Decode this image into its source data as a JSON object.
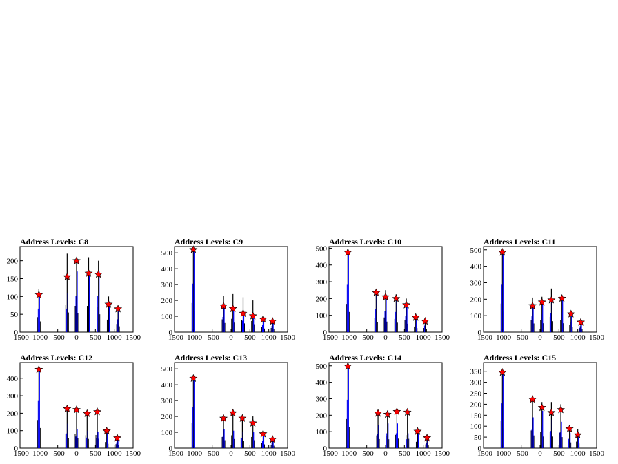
{
  "chart_data": [
    {
      "type": "bar",
      "title": "Address Levels: C8",
      "xlim": [
        -1500,
        1500
      ],
      "ylim": [
        0,
        240
      ],
      "yticks": [
        0,
        50,
        100,
        150,
        200
      ],
      "xticks": [
        -1500,
        -1000,
        -500,
        0,
        500,
        1000,
        1500
      ],
      "black_peaks": [
        [
          -1000,
          120
        ],
        [
          -250,
          220
        ],
        [
          0,
          210
        ],
        [
          320,
          210
        ],
        [
          580,
          200
        ],
        [
          850,
          100
        ],
        [
          1100,
          65
        ]
      ],
      "blue_peaks": [
        [
          -1000,
          110
        ],
        [
          -250,
          110
        ],
        [
          0,
          170
        ],
        [
          320,
          170
        ],
        [
          580,
          170
        ],
        [
          850,
          80
        ],
        [
          1100,
          60
        ]
      ],
      "markers": [
        [
          -1000,
          105
        ],
        [
          -250,
          155
        ],
        [
          0,
          200
        ],
        [
          320,
          165
        ],
        [
          580,
          162
        ],
        [
          850,
          78
        ],
        [
          1100,
          65
        ]
      ]
    },
    {
      "type": "bar",
      "title": "Address Levels: C9",
      "xlim": [
        -1500,
        1500
      ],
      "ylim": [
        0,
        540
      ],
      "yticks": [
        0,
        100,
        200,
        300,
        400,
        500
      ],
      "xticks": [
        -1500,
        -1000,
        -500,
        0,
        500,
        1000,
        1500
      ],
      "black_peaks": [
        [
          -1000,
          525
        ],
        [
          -200,
          230
        ],
        [
          50,
          240
        ],
        [
          320,
          220
        ],
        [
          580,
          200
        ],
        [
          850,
          90
        ],
        [
          1100,
          75
        ]
      ],
      "blue_peaks": [
        [
          -1000,
          510
        ],
        [
          -200,
          160
        ],
        [
          50,
          150
        ],
        [
          320,
          120
        ],
        [
          580,
          105
        ],
        [
          850,
          80
        ],
        [
          1100,
          65
        ]
      ],
      "markers": [
        [
          -1000,
          520
        ],
        [
          -200,
          165
        ],
        [
          50,
          148
        ],
        [
          320,
          118
        ],
        [
          580,
          102
        ],
        [
          850,
          82
        ],
        [
          1100,
          68
        ]
      ]
    },
    {
      "type": "bar",
      "title": "Address Levels: C10",
      "xlim": [
        -1500,
        1500
      ],
      "ylim": [
        0,
        510
      ],
      "yticks": [
        0,
        100,
        200,
        300,
        400,
        500
      ],
      "xticks": [
        -1500,
        -1000,
        -500,
        0,
        500,
        1000,
        1500
      ],
      "black_peaks": [
        [
          -1000,
          480
        ],
        [
          -250,
          240
        ],
        [
          0,
          250
        ],
        [
          280,
          225
        ],
        [
          550,
          200
        ],
        [
          800,
          95
        ],
        [
          1050,
          70
        ]
      ],
      "blue_peaks": [
        [
          -1000,
          470
        ],
        [
          -250,
          230
        ],
        [
          0,
          210
        ],
        [
          280,
          200
        ],
        [
          550,
          160
        ],
        [
          800,
          85
        ],
        [
          1050,
          65
        ]
      ],
      "markers": [
        [
          -1000,
          475
        ],
        [
          -250,
          235
        ],
        [
          0,
          210
        ],
        [
          280,
          200
        ],
        [
          550,
          162
        ],
        [
          800,
          88
        ],
        [
          1050,
          65
        ]
      ]
    },
    {
      "type": "bar",
      "title": "Address Levels: C11",
      "xlim": [
        -1500,
        1500
      ],
      "ylim": [
        0,
        520
      ],
      "yticks": [
        0,
        100,
        200,
        300,
        400,
        500
      ],
      "xticks": [
        -1500,
        -1000,
        -500,
        0,
        500,
        1000,
        1500
      ],
      "black_peaks": [
        [
          -1000,
          495
        ],
        [
          -200,
          210
        ],
        [
          50,
          215
        ],
        [
          300,
          265
        ],
        [
          580,
          215
        ],
        [
          820,
          120
        ],
        [
          1080,
          70
        ]
      ],
      "blue_peaks": [
        [
          -1000,
          480
        ],
        [
          -200,
          160
        ],
        [
          50,
          180
        ],
        [
          300,
          195
        ],
        [
          580,
          200
        ],
        [
          820,
          100
        ],
        [
          1080,
          60
        ]
      ],
      "markers": [
        [
          -1000,
          485
        ],
        [
          -200,
          160
        ],
        [
          50,
          182
        ],
        [
          300,
          195
        ],
        [
          580,
          205
        ],
        [
          820,
          110
        ],
        [
          1080,
          60
        ]
      ]
    },
    {
      "type": "bar",
      "title": "Address Levels: C12",
      "xlim": [
        -1500,
        1500
      ],
      "ylim": [
        0,
        490
      ],
      "yticks": [
        0,
        100,
        200,
        300,
        400
      ],
      "xticks": [
        -1500,
        -1000,
        -500,
        0,
        500,
        1000,
        1500
      ],
      "black_peaks": [
        [
          -1000,
          460
        ],
        [
          -250,
          230
        ],
        [
          0,
          230
        ],
        [
          280,
          210
        ],
        [
          550,
          215
        ],
        [
          800,
          100
        ],
        [
          1080,
          65
        ]
      ],
      "blue_peaks": [
        [
          -1000,
          450
        ],
        [
          -250,
          140
        ],
        [
          0,
          110
        ],
        [
          280,
          100
        ],
        [
          550,
          95
        ],
        [
          800,
          90
        ],
        [
          1080,
          55
        ]
      ],
      "markers": [
        [
          -1000,
          450
        ],
        [
          -250,
          225
        ],
        [
          0,
          220
        ],
        [
          280,
          198
        ],
        [
          550,
          208
        ],
        [
          800,
          98
        ],
        [
          1080,
          58
        ]
      ]
    },
    {
      "type": "bar",
      "title": "Address Levels: C13",
      "xlim": [
        -1500,
        1500
      ],
      "ylim": [
        0,
        540
      ],
      "yticks": [
        0,
        100,
        200,
        300,
        400,
        500
      ],
      "xticks": [
        -1500,
        -1000,
        -500,
        0,
        500,
        1000,
        1500
      ],
      "black_peaks": [
        [
          -1000,
          450
        ],
        [
          -200,
          200
        ],
        [
          50,
          230
        ],
        [
          300,
          190
        ],
        [
          580,
          200
        ],
        [
          850,
          95
        ],
        [
          1100,
          60
        ]
      ],
      "blue_peaks": [
        [
          -1000,
          435
        ],
        [
          -200,
          120
        ],
        [
          50,
          110
        ],
        [
          300,
          105
        ],
        [
          580,
          100
        ],
        [
          850,
          80
        ],
        [
          1100,
          50
        ]
      ],
      "markers": [
        [
          -1000,
          440
        ],
        [
          -200,
          188
        ],
        [
          50,
          222
        ],
        [
          300,
          188
        ],
        [
          580,
          158
        ],
        [
          850,
          90
        ],
        [
          1100,
          55
        ]
      ]
    },
    {
      "type": "bar",
      "title": "Address Levels: C14",
      "xlim": [
        -1500,
        1500
      ],
      "ylim": [
        0,
        520
      ],
      "yticks": [
        0,
        100,
        200,
        300,
        400,
        500
      ],
      "xticks": [
        -1500,
        -1000,
        -500,
        0,
        500,
        1000,
        1500
      ],
      "black_peaks": [
        [
          -1000,
          505
        ],
        [
          -200,
          220
        ],
        [
          50,
          215
        ],
        [
          300,
          230
        ],
        [
          580,
          225
        ],
        [
          850,
          110
        ],
        [
          1100,
          65
        ]
      ],
      "blue_peaks": [
        [
          -1000,
          490
        ],
        [
          -200,
          140
        ],
        [
          50,
          150
        ],
        [
          300,
          150
        ],
        [
          580,
          90
        ],
        [
          850,
          85
        ],
        [
          1100,
          55
        ]
      ],
      "markers": [
        [
          -1000,
          498
        ],
        [
          -200,
          212
        ],
        [
          50,
          205
        ],
        [
          300,
          222
        ],
        [
          580,
          218
        ],
        [
          850,
          102
        ],
        [
          1100,
          62
        ]
      ]
    },
    {
      "type": "bar",
      "title": "Address Levels: C15",
      "xlim": [
        -1500,
        1500
      ],
      "ylim": [
        0,
        390
      ],
      "yticks": [
        0,
        50,
        100,
        150,
        200,
        250,
        300,
        350
      ],
      "xticks": [
        -1500,
        -1000,
        -500,
        0,
        500,
        1000,
        1500
      ],
      "black_peaks": [
        [
          -1000,
          360
        ],
        [
          -200,
          230
        ],
        [
          50,
          210
        ],
        [
          300,
          210
        ],
        [
          550,
          200
        ],
        [
          780,
          105
        ],
        [
          1000,
          85
        ]
      ],
      "blue_peaks": [
        [
          -1000,
          340
        ],
        [
          -200,
          140
        ],
        [
          50,
          170
        ],
        [
          300,
          130
        ],
        [
          550,
          120
        ],
        [
          780,
          70
        ],
        [
          1000,
          55
        ]
      ],
      "markers": [
        [
          -1000,
          345
        ],
        [
          -200,
          222
        ],
        [
          50,
          185
        ],
        [
          300,
          162
        ],
        [
          550,
          175
        ],
        [
          780,
          88
        ],
        [
          1000,
          60
        ]
      ]
    }
  ]
}
